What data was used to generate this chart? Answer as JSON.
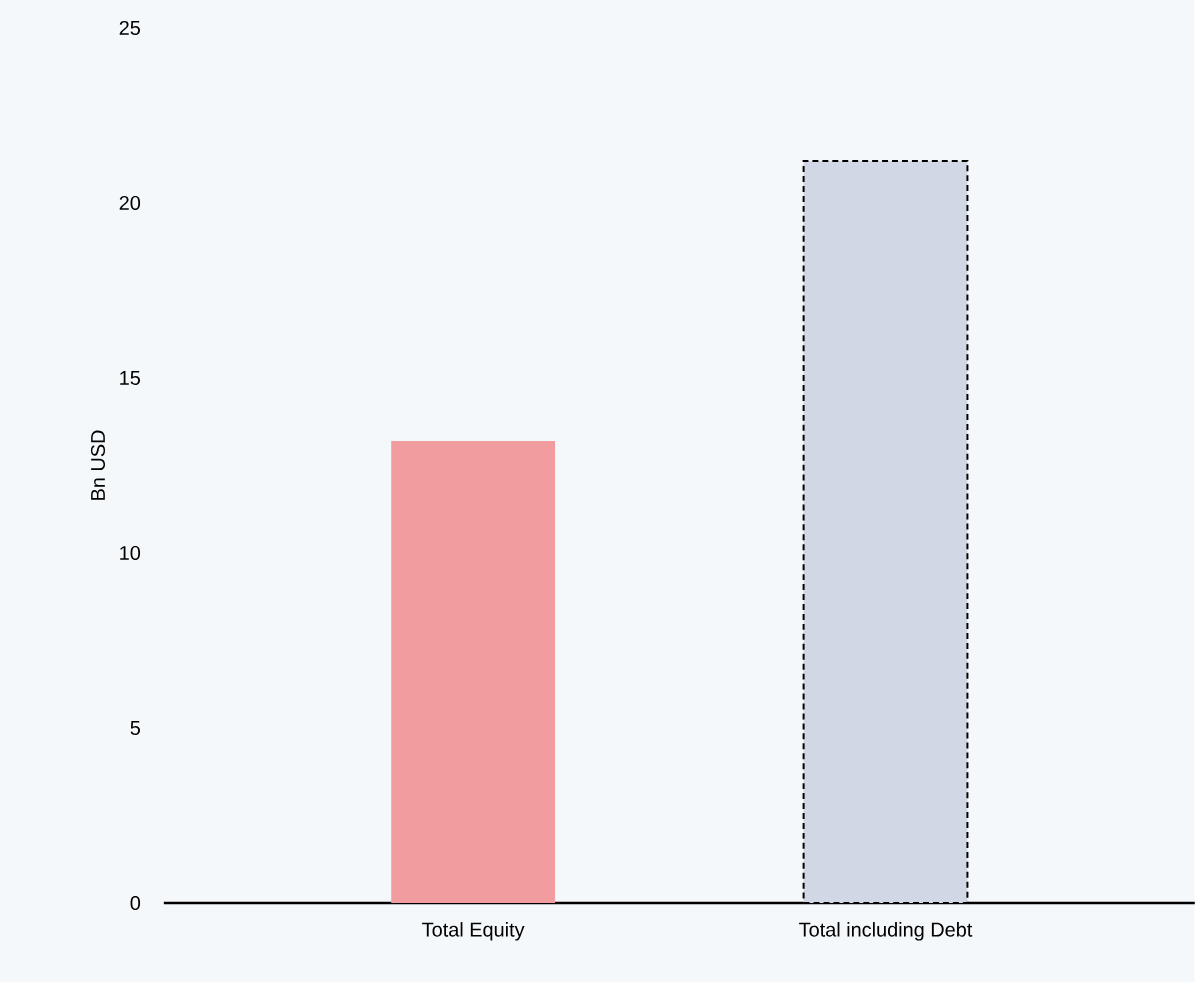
{
  "chart_data": {
    "type": "bar",
    "ylabel": "Bn USD",
    "categories": [
      "Total Equity",
      "Total including Debt"
    ],
    "series": [
      {
        "color": "#f19c9e",
        "values": [
          13.2,
          null
        ]
      },
      {
        "color": "#d1d7e4",
        "values": [
          null,
          21.2
        ],
        "line_style": "dashed"
      }
    ],
    "ylim": [
      0,
      25
    ],
    "yticks": [
      0,
      5,
      10,
      15,
      20,
      25
    ]
  }
}
